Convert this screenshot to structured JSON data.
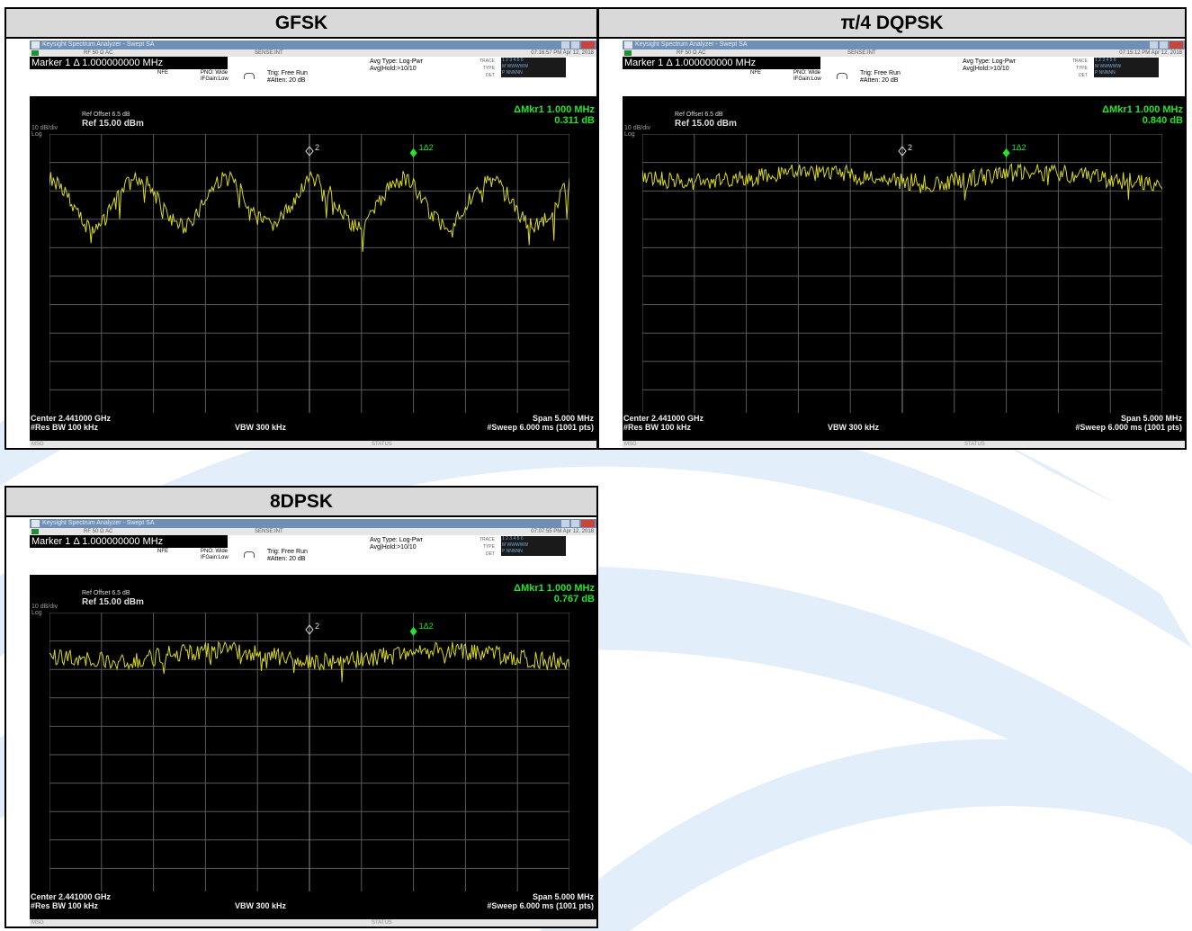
{
  "panels": [
    {
      "id": "gfsk",
      "header": "GFSK",
      "window_title": "Keysight Spectrum Analyzer - Swept SA",
      "status_strip": "RF   50 Ω  AC",
      "sense": "SENSE:INT",
      "timestamp": "07:16:57 PM Apr 12, 2018",
      "marker_readout": "Marker 1 Δ 1.000000000 MHz",
      "nfe": "NFE",
      "pno": "PNO: Wide",
      "ifgain": "IFGain:Low",
      "trig": "Trig: Free Run",
      "atten": "#Atten: 20 dB",
      "avg_type": "Avg Type: Log-Pwr",
      "avg_hold": "Avg|Hold:>10/10",
      "trace_label": "TRACE",
      "type_label": "TYPE",
      "det_label": "DET",
      "trace_row": "1 2 3 4 5 6",
      "type_row": "M WWWWW",
      "det_row": "P NNNNN",
      "ref_offset": "Ref Offset 6.5 dB",
      "ref_level": "Ref 15.00 dBm",
      "scale_line1": "10 dB/div",
      "scale_line2": "Log",
      "delta_marker": "ΔMkr1 1.000 MHz",
      "delta_value": "0.311 dB",
      "marker_label_ref": "2",
      "marker_label_delta": "1Δ2",
      "center": "Center 2.441000 GHz",
      "rbw": "#Res BW 100 kHz",
      "vbw": "VBW 300 kHz",
      "span": "Span 5.000 MHz",
      "sweep": "#Sweep  6.000 ms (1001 pts)",
      "msg": "MSG",
      "status": "STATUS",
      "trace_shape": "gfsk"
    },
    {
      "id": "dqpsk",
      "header": "π/4 DQPSK",
      "window_title": "Keysight Spectrum Analyzer - Swept SA",
      "status_strip": "RF   50 Ω  AC",
      "sense": "SENSE:INT",
      "timestamp": "07:15:12 PM Apr 12, 2018",
      "marker_readout": "Marker 1 Δ 1.000000000 MHz",
      "nfe": "NFE",
      "pno": "PNO: Wide",
      "ifgain": "IFGain:Low",
      "trig": "Trig: Free Run",
      "atten": "#Atten: 20 dB",
      "avg_type": "Avg Type: Log-Pwr",
      "avg_hold": "Avg|Hold:>10/10",
      "trace_label": "TRACE",
      "type_label": "TYPE",
      "det_label": "DET",
      "trace_row": "1 2 3 4 5 6",
      "type_row": "M WWWWW",
      "det_row": "P NNNNN",
      "ref_offset": "Ref Offset 6.5 dB",
      "ref_level": "Ref 15.00 dBm",
      "scale_line1": "10 dB/div",
      "scale_line2": "Log",
      "delta_marker": "ΔMkr1 1.000 MHz",
      "delta_value": "0.840 dB",
      "marker_label_ref": "2",
      "marker_label_delta": "1Δ2",
      "center": "Center 2.441000 GHz",
      "rbw": "#Res BW 100 kHz",
      "vbw": "VBW 300 kHz",
      "span": "Span 5.000 MHz",
      "sweep": "#Sweep  6.000 ms (1001 pts)",
      "msg": "MSG",
      "status": "STATUS",
      "trace_shape": "flat"
    },
    {
      "id": "dpsk8",
      "header": "8DPSK",
      "window_title": "Keysight Spectrum Analyzer - Swept SA",
      "status_strip": "RF   50 Ω  AC",
      "sense": "SENSE:INT",
      "timestamp": "07:07:55 PM Apr 12, 2018",
      "marker_readout": "Marker 1 Δ 1.000000000 MHz",
      "nfe": "NFE",
      "pno": "PNO: Wide",
      "ifgain": "IFGain:Low",
      "trig": "Trig: Free Run",
      "atten": "#Atten: 20 dB",
      "avg_type": "Avg Type: Log-Pwr",
      "avg_hold": "Avg|Hold:>10/10",
      "trace_label": "TRACE",
      "type_label": "TYPE",
      "det_label": "DET",
      "trace_row": "1 2 3 4 5 6",
      "type_row": "M WWWWW",
      "det_row": "P NNNNN",
      "ref_offset": "Ref Offset 6.5 dB",
      "ref_level": "Ref 15.00 dBm",
      "scale_line1": "10 dB/div",
      "scale_line2": "Log",
      "delta_marker": "ΔMkr1 1.000 MHz",
      "delta_value": "0.767 dB",
      "marker_label_ref": "2",
      "marker_label_delta": "1Δ2",
      "center": "Center 2.441000 GHz",
      "rbw": "#Res BW 100 kHz",
      "vbw": "VBW 300 kHz",
      "span": "Span 5.000 MHz",
      "sweep": "#Sweep  6.000 ms (1001 pts)",
      "msg": "MSG",
      "status": "STATUS",
      "trace_shape": "flat"
    }
  ],
  "colors": {
    "trace": "#d8d81e",
    "marker": "#27e32b",
    "grid": "#5a5a5a",
    "screen_bg": "#000000",
    "panel_header_bg": "#d9d9d9",
    "watermark": "#e3eefb"
  }
}
